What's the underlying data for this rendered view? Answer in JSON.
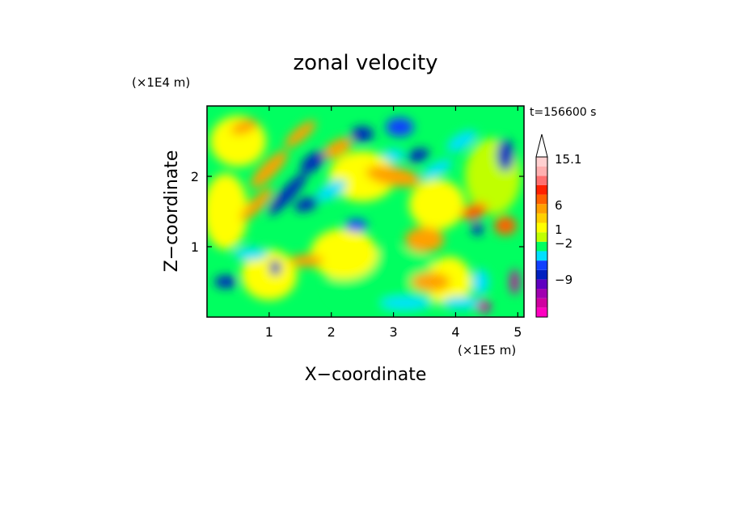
{
  "chart_data": {
    "type": "heatmap",
    "title": "zonal velocity",
    "xlabel": "X−coordinate",
    "ylabel": "Z−coordinate",
    "x_unit": "(×1E5 m)",
    "y_unit": "(×1E4 m)",
    "time_label": "t=156600 s",
    "xlim": [
      0,
      5.1
    ],
    "ylim": [
      0,
      3.0
    ],
    "x_ticks": [
      "1",
      "2",
      "3",
      "4",
      "5"
    ],
    "y_ticks": [
      "1",
      "2"
    ],
    "colorbar": {
      "tick_labels": [
        "15.1",
        "6",
        "1",
        "−2",
        "−9"
      ],
      "tick_values": [
        15.1,
        6,
        1,
        -2,
        -9
      ],
      "colors": [
        "#ff00c0",
        "#d000a0",
        "#a000b0",
        "#6000c0",
        "#0020c0",
        "#1040ff",
        "#00e0ff",
        "#00ff60",
        "#c0ff00",
        "#ffff00",
        "#ffd000",
        "#ffa000",
        "#ff6000",
        "#ff2000",
        "#ff7070",
        "#ffb0b0",
        "#ffd0d0"
      ]
    },
    "features": [
      {
        "x": 1.3,
        "z": 1.8,
        "value": -15,
        "shape": "diagonal band"
      },
      {
        "x": 1.8,
        "z": 1.6,
        "value": -15
      },
      {
        "x": 2.5,
        "z": 2.6,
        "value": -15
      },
      {
        "x": 3.4,
        "z": 2.3,
        "value": -10
      },
      {
        "x": 3.5,
        "z": 1.1,
        "value": 6
      },
      {
        "x": 4.3,
        "z": 1.5,
        "value": 6
      },
      {
        "x": 3.3,
        "z": 0.4,
        "value": 0
      }
    ]
  }
}
